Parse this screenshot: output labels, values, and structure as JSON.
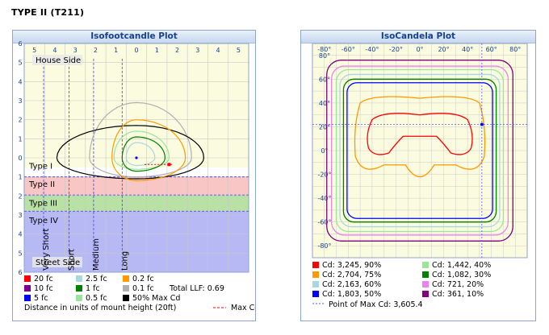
{
  "page_title": "TYPE II (T211)",
  "colors": {
    "red": "#ff0000",
    "orange": "#ff9900",
    "lightblue": "#a7d8e0",
    "blue": "#0000ff",
    "lightgreen": "#99e699",
    "green": "#008000",
    "pink": "#ee82ee",
    "purple": "#800080",
    "gray": "#b0b0b0",
    "black": "#000000"
  },
  "chart_data": [
    {
      "type": "line",
      "title": "Isofootcandle Plot",
      "x_ticks": [
        "5",
        "4",
        "3",
        "2",
        "1",
        "0",
        "1",
        "2",
        "3",
        "4",
        "5"
      ],
      "y_ticks": [
        "6",
        "5",
        "4",
        "3",
        "2",
        "1",
        "0",
        "1",
        "2",
        "3",
        "4",
        "5",
        "6"
      ],
      "zones": {
        "house_side": "House Side",
        "street_side": "Street Side",
        "type_labels": [
          "Type I",
          "Type II",
          "Type III",
          "Type IV"
        ]
      },
      "distance_lines": [
        "Very Short",
        "Short",
        "Medium",
        "Long"
      ],
      "contours": [
        {
          "name": "20 fc",
          "color": "red",
          "x_span": [
            1.5,
            1.8
          ]
        },
        {
          "name": "10 fc",
          "color": "purple"
        },
        {
          "name": "5 fc",
          "color": "blue"
        },
        {
          "name": "2.5 fc",
          "color": "lightblue"
        },
        {
          "name": "1 fc",
          "color": "green"
        },
        {
          "name": "0.5 fc",
          "color": "lightgreen"
        },
        {
          "name": "0.2 fc",
          "color": "orange"
        },
        {
          "name": "0.1 fc",
          "color": "gray"
        },
        {
          "name": "50% Max Cd",
          "color": "black"
        }
      ],
      "legend": [
        [
          {
            "label": "20 fc",
            "color": "red"
          },
          {
            "label": "2.5 fc",
            "color": "lightblue"
          },
          {
            "label": "0.2 fc",
            "color": "orange"
          }
        ],
        [
          {
            "label": "10 fc",
            "color": "purple"
          },
          {
            "label": "1 fc",
            "color": "green"
          },
          {
            "label": "0.1 fc",
            "color": "gray"
          }
        ],
        [
          {
            "label": "5 fc",
            "color": "blue"
          },
          {
            "label": "0.5 fc",
            "color": "lightgreen"
          },
          {
            "label": "50% Max Cd",
            "color": "black"
          }
        ]
      ],
      "total_llf": "Total LLF: 0.69",
      "distance_note": "Distance in units of mount height (20ft)",
      "max_cd_label": "Max Cd"
    },
    {
      "type": "line",
      "title": "IsoCandela Plot",
      "x_ticks": [
        "-80°",
        "-60°",
        "-40°",
        "-20°",
        "0°",
        "20°",
        "40°",
        "60°",
        "80°"
      ],
      "y_ticks": [
        "80°",
        "60°",
        "40°",
        "20°",
        "0°",
        "-20°",
        "-40°",
        "-60°",
        "-80°"
      ],
      "xlim": [
        -90,
        90
      ],
      "ylim": [
        -90,
        90
      ],
      "series": [
        {
          "name": "Cd: 3,245, 90%",
          "color": "red"
        },
        {
          "name": "Cd: 2,704, 75%",
          "color": "orange"
        },
        {
          "name": "Cd: 2,163, 60%",
          "color": "lightblue"
        },
        {
          "name": "Cd: 1,803, 50%",
          "color": "blue"
        },
        {
          "name": "Cd: 1,442, 40%",
          "color": "lightgreen"
        },
        {
          "name": "Cd: 1,082, 30%",
          "color": "green"
        },
        {
          "name": "Cd: 721, 20%",
          "color": "pink"
        },
        {
          "name": "Cd: 361, 10%",
          "color": "purple"
        }
      ],
      "max_point": {
        "x": 52,
        "y": 22
      },
      "max_point_label": "Point of Max Cd: 3,605.4"
    }
  ]
}
